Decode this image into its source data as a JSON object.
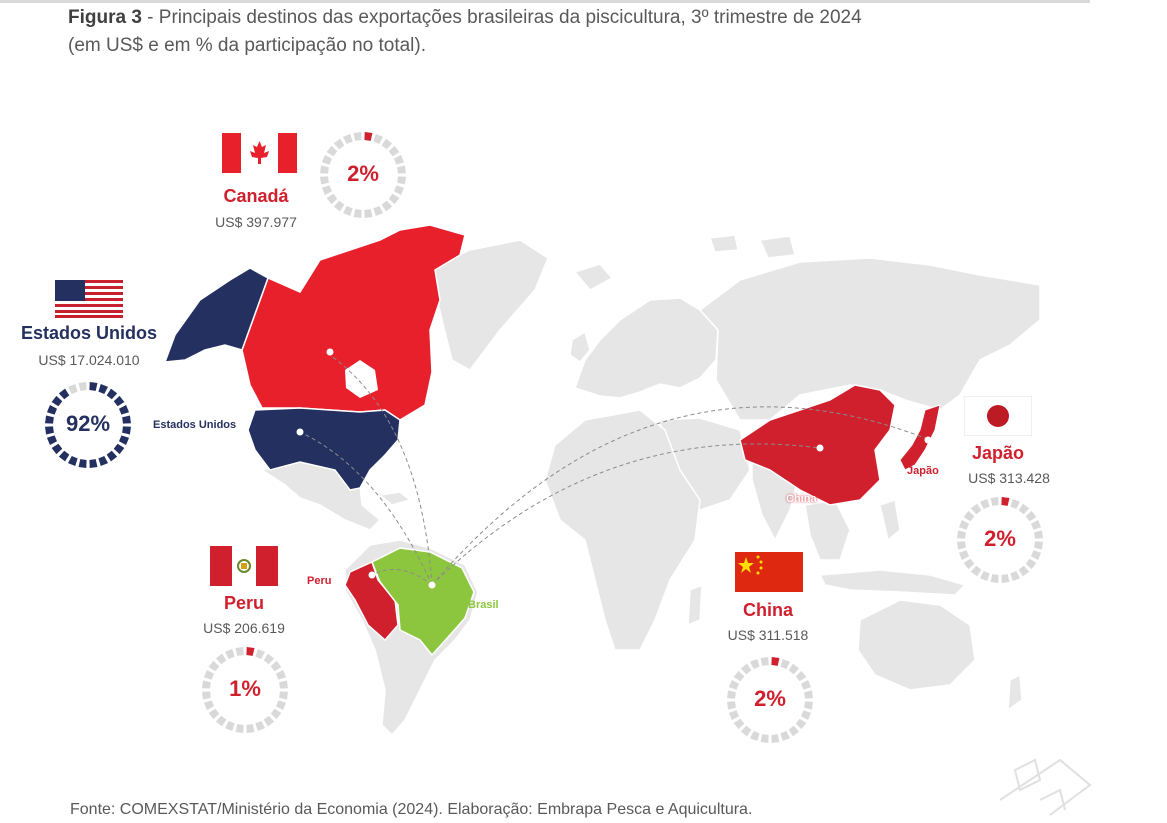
{
  "title": {
    "prefix": "Figura 3",
    "text": " - Principais destinos das exportações brasileiras da piscicultura, 3º trimestre de 2024",
    "line2": "(em US$ e em % da participação no total)."
  },
  "source": "Fonte: COMEXSTAT/Ministério da Economia (2024). Elaboração: Embrapa Pesca e Aquicultura.",
  "colors": {
    "red": "#d0202e",
    "navy": "#243060",
    "brazil": "#8cc63f",
    "land": "#e6e6e6",
    "ring_bg": "#d9d9d9"
  },
  "countries": [
    {
      "id": "canada",
      "name": "Canadá",
      "value": "US$ 397.977",
      "share_label": "2%",
      "share": 2
    },
    {
      "id": "usa",
      "name": "Estados Unidos",
      "value": "US$ 17.024.010",
      "share_label": "92%",
      "share": 92,
      "map_label": "Estados Unidos"
    },
    {
      "id": "peru",
      "name": "Peru",
      "value": "US$ 206.619",
      "share_label": "1%",
      "share": 1,
      "map_label": "Peru"
    },
    {
      "id": "china",
      "name": "China",
      "value": "US$ 311.518",
      "share_label": "2%",
      "share": 2,
      "map_label": "China"
    },
    {
      "id": "japan",
      "name": "Japão",
      "value": "US$ 313.428",
      "share_label": "2%",
      "share": 2,
      "map_label": "Japão"
    }
  ],
  "origin_label": "Brasil",
  "icons": [
    "canada-flag-icon",
    "usa-flag-icon",
    "peru-flag-icon",
    "china-flag-icon",
    "japan-flag-icon"
  ]
}
